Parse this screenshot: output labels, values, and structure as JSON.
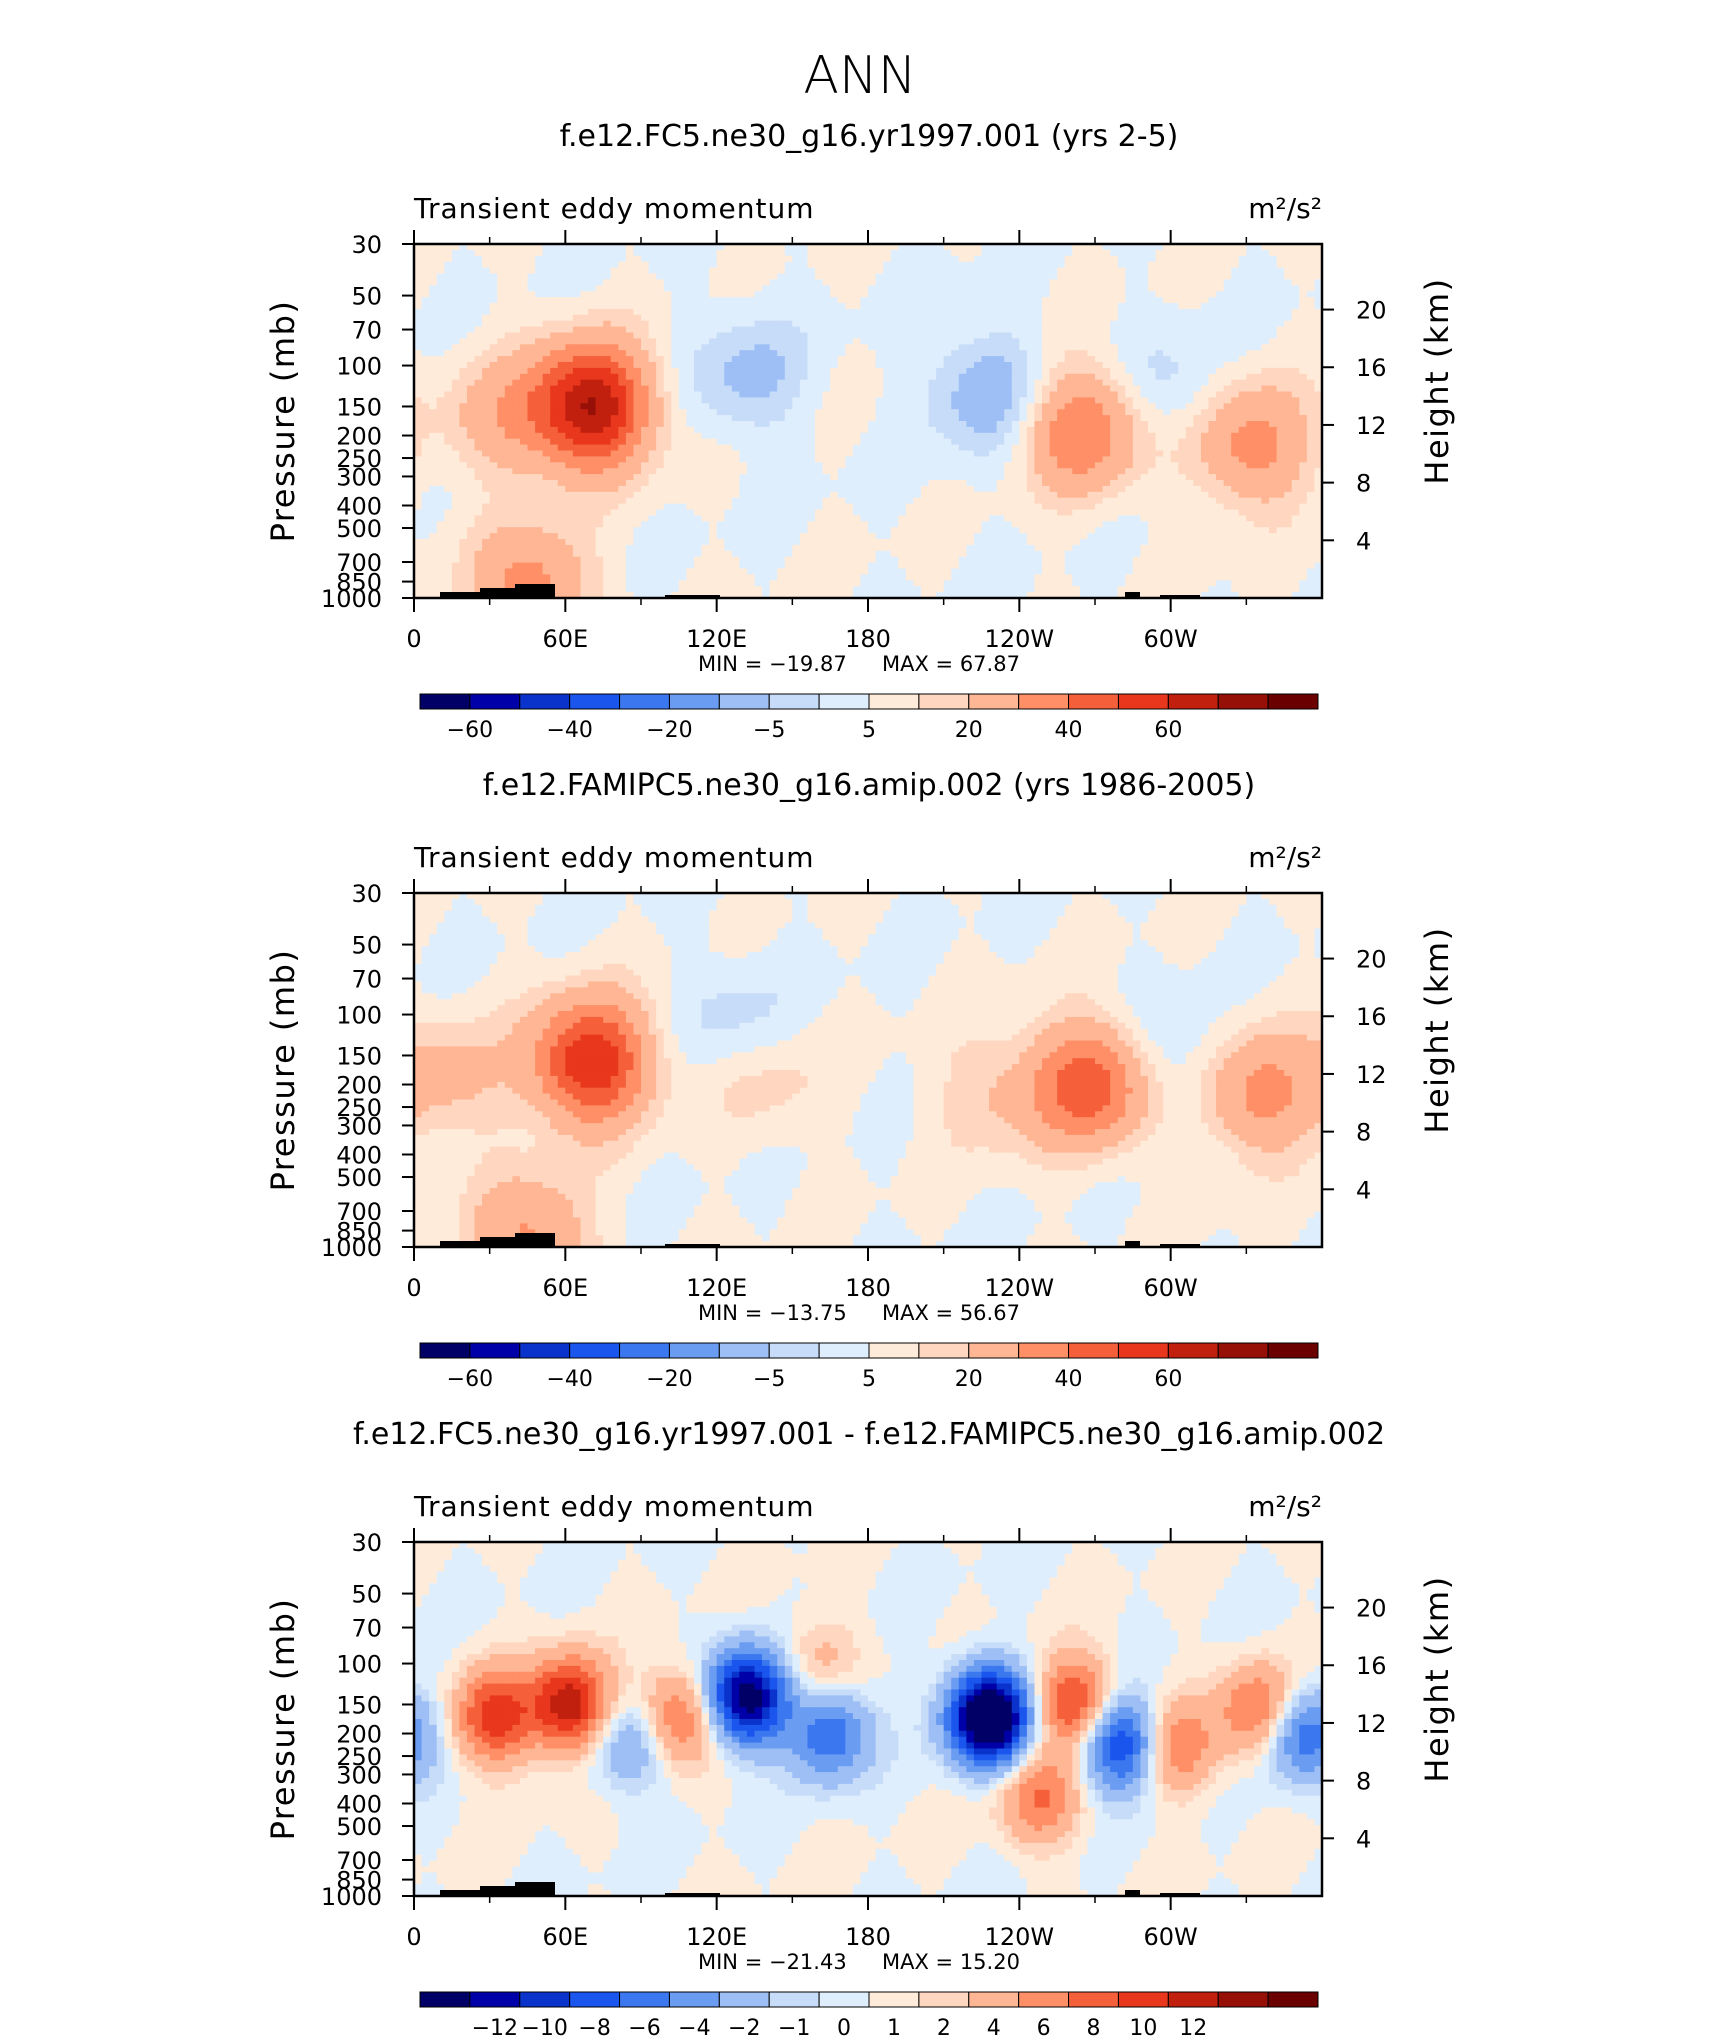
{
  "figure": {
    "title": "ANN"
  },
  "colors": {
    "full_field_palette": [
      "#000066",
      "#0000a8",
      "#0a33cc",
      "#1a55ee",
      "#3b78f0",
      "#6a9cf2",
      "#9dbff5",
      "#c7dcf8",
      "#dfeefc",
      "#ffebd9",
      "#ffd6bf",
      "#ffb694",
      "#ff8f66",
      "#f5603b",
      "#e8371d",
      "#c2200f",
      "#961008",
      "#6b0000"
    ],
    "diff_palette": [
      "#000066",
      "#0000a8",
      "#0a33cc",
      "#1a55ee",
      "#3b78f0",
      "#6a9cf2",
      "#9dbff5",
      "#c7dcf8",
      "#dfeefc",
      "#ffebd9",
      "#ffd6bf",
      "#ffb694",
      "#ff8f66",
      "#f5603b",
      "#e8371d",
      "#c2200f",
      "#961008",
      "#6b0000"
    ]
  },
  "chart_data": [
    {
      "type": "heatmap",
      "title": "f.e12.FC5.ne30_g16.yr1997.001 (yrs 2-5)",
      "left_string": "Transient eddy momentum",
      "units": "m²/s²",
      "ylabel": "Pressure (mb)",
      "ylabel_right": "Height (km)",
      "x_ticks": [
        "0",
        "60E",
        "120E",
        "180",
        "120W",
        "60W"
      ],
      "y_ticks": [
        "30",
        "50",
        "70",
        "100",
        "150",
        "200",
        "250",
        "300",
        "400",
        "500",
        "700",
        "850",
        "1000"
      ],
      "y_ticks_right": [
        "20",
        "16",
        "12",
        "8",
        "4"
      ],
      "min_label": "MIN = −19.87",
      "max_label": "MAX = 67.87",
      "min": -19.87,
      "max": 67.87,
      "colorbar_labels": [
        "−60",
        "−40",
        "−20",
        "−5",
        "5",
        "20",
        "40",
        "60"
      ],
      "features": [
        {
          "lon": 70,
          "p": 150,
          "amp": 60
        },
        {
          "lon": 35,
          "p": 170,
          "amp": 15
        },
        {
          "lon": 132,
          "p": 110,
          "amp": -12
        },
        {
          "lon": 227,
          "p": 130,
          "amp": -16
        },
        {
          "lon": 265,
          "p": 190,
          "amp": 30
        },
        {
          "lon": 300,
          "p": 130,
          "amp": -8
        },
        {
          "lon": 332,
          "p": 220,
          "amp": 25
        },
        {
          "lon": 46,
          "p": 900,
          "amp": 25
        }
      ]
    },
    {
      "type": "heatmap",
      "title": "f.e12.FAMIPC5.ne30_g16.amip.002 (yrs 1986-2005)",
      "left_string": "Transient eddy momentum",
      "units": "m²/s²",
      "ylabel": "Pressure (mb)",
      "ylabel_right": "Height (km)",
      "x_ticks": [
        "0",
        "60E",
        "120E",
        "180",
        "120W",
        "60W"
      ],
      "y_ticks": [
        "30",
        "50",
        "70",
        "100",
        "150",
        "200",
        "250",
        "300",
        "400",
        "500",
        "700",
        "850",
        "1000"
      ],
      "y_ticks_right": [
        "20",
        "16",
        "12",
        "8",
        "4"
      ],
      "min_label": "MIN = −13.75",
      "max_label": "MAX = 56.67",
      "min": -13.75,
      "max": 56.67,
      "colorbar_labels": [
        "−60",
        "−40",
        "−20",
        "−5",
        "5",
        "20",
        "40",
        "60"
      ],
      "features": [
        {
          "lon": 70,
          "p": 160,
          "amp": 50
        },
        {
          "lon": 15,
          "p": 190,
          "amp": 12
        },
        {
          "lon": 140,
          "p": 190,
          "amp": 8
        },
        {
          "lon": 128,
          "p": 110,
          "amp": -8
        },
        {
          "lon": 268,
          "p": 200,
          "amp": 38
        },
        {
          "lon": 230,
          "p": 220,
          "amp": 10
        },
        {
          "lon": 300,
          "p": 160,
          "amp": -8
        },
        {
          "lon": 335,
          "p": 220,
          "amp": 24
        },
        {
          "lon": 46,
          "p": 900,
          "amp": 22
        }
      ]
    },
    {
      "type": "heatmap",
      "title": "f.e12.FC5.ne30_g16.yr1997.001 - f.e12.FAMIPC5.ne30_g16.amip.002",
      "left_string": "Transient eddy momentum",
      "units": "m²/s²",
      "ylabel": "Pressure (mb)",
      "ylabel_right": "Height (km)",
      "x_ticks": [
        "0",
        "60E",
        "120E",
        "180",
        "120W",
        "60W"
      ],
      "y_ticks": [
        "30",
        "50",
        "70",
        "100",
        "150",
        "200",
        "250",
        "300",
        "400",
        "500",
        "700",
        "850",
        "1000"
      ],
      "y_ticks_right": [
        "20",
        "16",
        "12",
        "8",
        "4"
      ],
      "min_label": "MIN = −21.43",
      "max_label": "MAX = 15.20",
      "min": -21.43,
      "max": 15.2,
      "colorbar_labels": [
        "−12",
        "−10",
        "−8",
        "−6",
        "−4",
        "−2",
        "−1",
        "0",
        "1",
        "2",
        "4",
        "6",
        "8",
        "10",
        "12"
      ],
      "features": [
        {
          "lon": 32,
          "p": 170,
          "amp": 9
        },
        {
          "lon": 62,
          "p": 150,
          "amp": 12
        },
        {
          "lon": 105,
          "p": 170,
          "amp": 7
        },
        {
          "lon": 132,
          "p": 140,
          "amp": -16
        },
        {
          "lon": 165,
          "p": 200,
          "amp": -8
        },
        {
          "lon": 228,
          "p": 170,
          "amp": -20
        },
        {
          "lon": 262,
          "p": 150,
          "amp": 9
        },
        {
          "lon": 280,
          "p": 220,
          "amp": -11
        },
        {
          "lon": 302,
          "p": 230,
          "amp": 6
        },
        {
          "lon": 248,
          "p": 380,
          "amp": 6
        },
        {
          "lon": 335,
          "p": 160,
          "amp": 7
        },
        {
          "lon": 352,
          "p": 200,
          "amp": -8
        },
        {
          "lon": 85,
          "p": 220,
          "amp": -5
        },
        {
          "lon": 160,
          "p": 100,
          "amp": 3
        }
      ]
    }
  ]
}
